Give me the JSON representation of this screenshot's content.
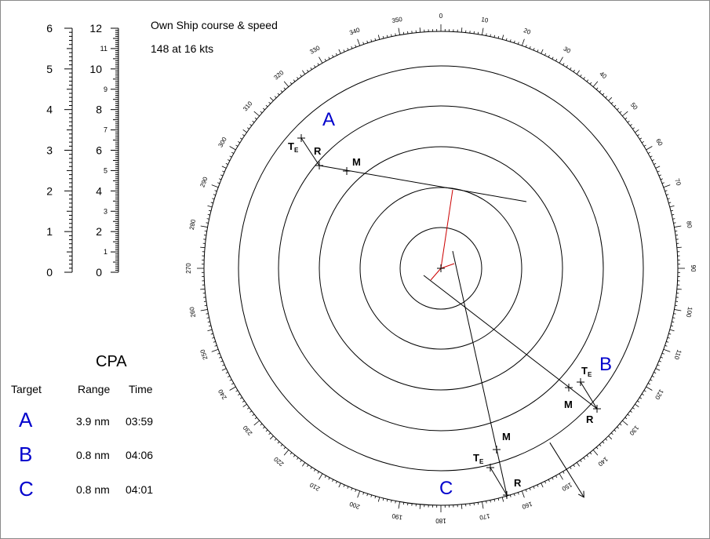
{
  "own_ship": {
    "label": "Own Ship course & speed",
    "value": "148 at 16 kts",
    "course_deg": 148
  },
  "scales": {
    "left_labels": [
      "0",
      "1",
      "2",
      "3",
      "4",
      "5",
      "6"
    ],
    "right_major_labels": [
      "0",
      "2",
      "4",
      "6",
      "8",
      "10",
      "12"
    ],
    "right_minor_labels": [
      "1",
      "3",
      "5",
      "7",
      "9",
      "11"
    ]
  },
  "compass": {
    "bearing_labels": [
      "0",
      "10",
      "20",
      "30",
      "40",
      "50",
      "60",
      "70",
      "80",
      "90",
      "100",
      "110",
      "120",
      "130",
      "140",
      "150",
      "160",
      "170",
      "180",
      "190",
      "200",
      "210",
      "220",
      "230",
      "240",
      "250",
      "260",
      "270",
      "280",
      "290",
      "300",
      "310",
      "320",
      "330",
      "340",
      "350"
    ],
    "range_rings": 5
  },
  "targets": [
    {
      "letter": "A",
      "markers": [
        "Te",
        "R",
        "M"
      ]
    },
    {
      "letter": "B",
      "markers": [
        "Te",
        "M",
        "R"
      ]
    },
    {
      "letter": "C",
      "markers": [
        "M",
        "Te",
        "R"
      ]
    }
  ],
  "cpa": {
    "title": "CPA",
    "headers": {
      "target": "Target",
      "range": "Range",
      "time": "Time"
    },
    "rows": [
      {
        "target": "A",
        "range": "3.9 nm",
        "time": "03:59"
      },
      {
        "target": "B",
        "range": "0.8 nm",
        "time": "04:06"
      },
      {
        "target": "C",
        "range": "0.8 nm",
        "time": "04:01"
      }
    ]
  },
  "colors": {
    "target_letter": "#0000cc",
    "vector": "#cc0000",
    "line": "#000000"
  }
}
